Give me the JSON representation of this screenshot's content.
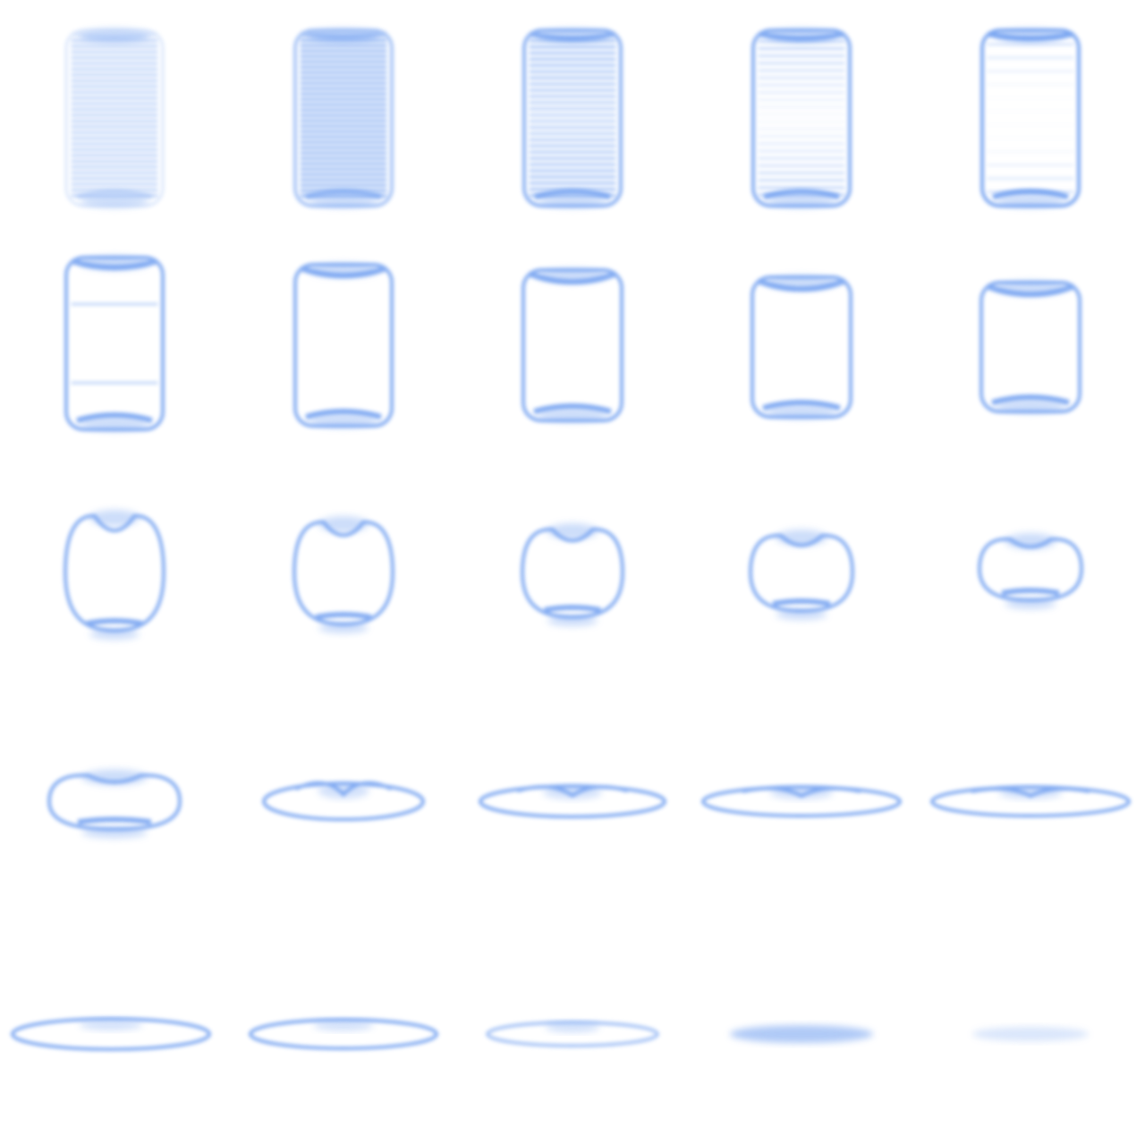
{
  "sheet": {
    "background": "#ffffff",
    "accent": "#6f9ff0",
    "columns": 5,
    "rows": 5
  },
  "frames": [
    {
      "index": 1,
      "stage": "stack-faint"
    },
    {
      "index": 2,
      "stage": "stack-dense"
    },
    {
      "index": 3,
      "stage": "stack-outlined"
    },
    {
      "index": 4,
      "stage": "stack-hollowing"
    },
    {
      "index": 5,
      "stage": "jar-hollow"
    },
    {
      "index": 6,
      "stage": "jar"
    },
    {
      "index": 7,
      "stage": "jar"
    },
    {
      "index": 8,
      "stage": "jar"
    },
    {
      "index": 9,
      "stage": "jar"
    },
    {
      "index": 10,
      "stage": "jar"
    },
    {
      "index": 11,
      "stage": "squash"
    },
    {
      "index": 12,
      "stage": "squash"
    },
    {
      "index": 13,
      "stage": "squash"
    },
    {
      "index": 14,
      "stage": "squash"
    },
    {
      "index": 15,
      "stage": "squash"
    },
    {
      "index": 16,
      "stage": "flatten"
    },
    {
      "index": 17,
      "stage": "flatten"
    },
    {
      "index": 18,
      "stage": "flatten"
    },
    {
      "index": 19,
      "stage": "flatten"
    },
    {
      "index": 20,
      "stage": "flatten"
    },
    {
      "index": 21,
      "stage": "puddle"
    },
    {
      "index": 22,
      "stage": "puddle"
    },
    {
      "index": 23,
      "stage": "puddle-fading"
    },
    {
      "index": 24,
      "stage": "puddle-fading"
    },
    {
      "index": 25,
      "stage": "puddle-vanishing"
    }
  ]
}
